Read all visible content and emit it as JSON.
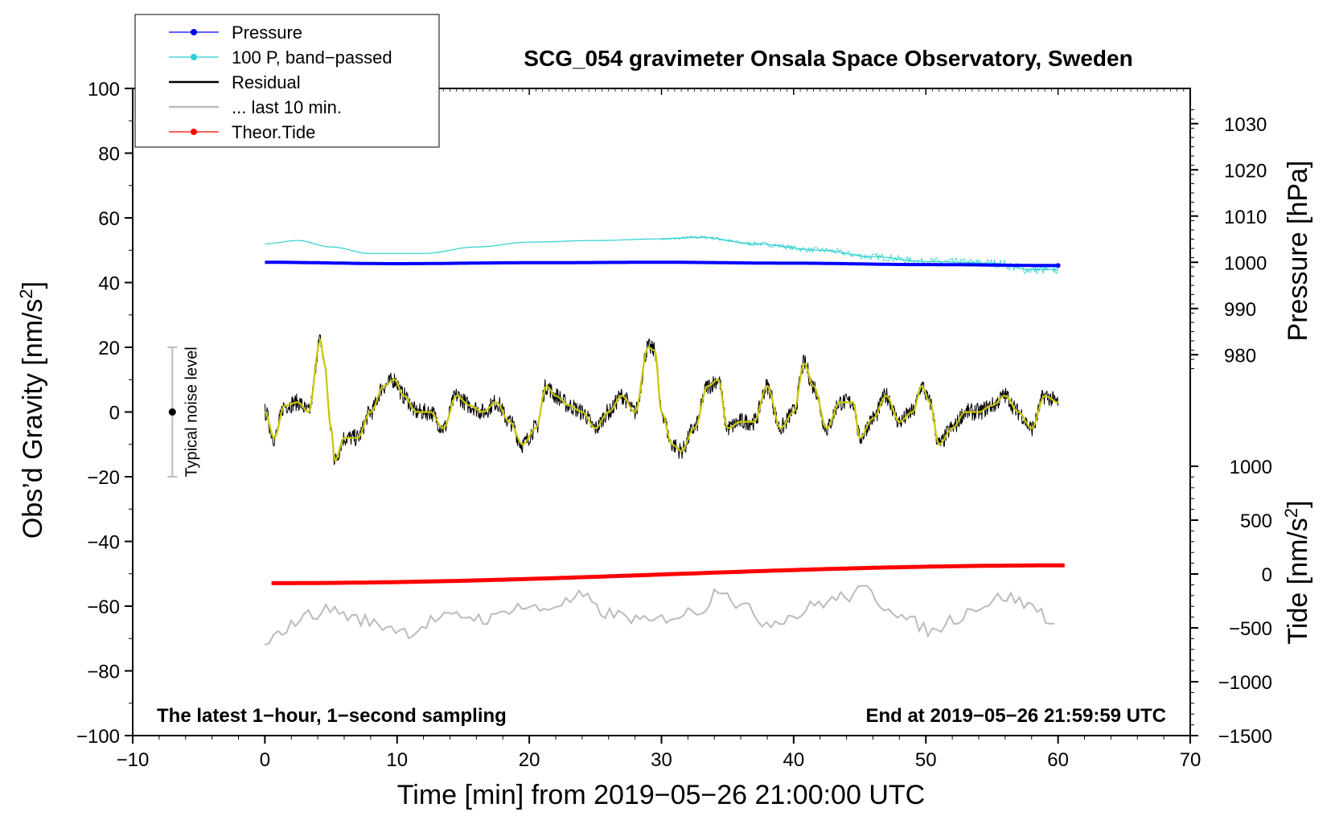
{
  "chart_data": {
    "type": "line",
    "title": "SCG_054 gravimeter Onsala Space Observatory, Sweden",
    "xlabel": "Time [min] from 2019−05−26 21:00:00 UTC",
    "xlim": [
      -10,
      70
    ],
    "x_ticks": [
      -10,
      0,
      10,
      20,
      30,
      40,
      50,
      60,
      70
    ],
    "x_tick_labels": [
      "−10",
      "0",
      "10",
      "20",
      "30",
      "40",
      "50",
      "60",
      "70"
    ],
    "left_axis": {
      "label_main": "Obs’d Gravity [nm/s",
      "label_sup": "2",
      "label_end": "]",
      "ylim": [
        -100,
        100
      ],
      "ticks": [
        -100,
        -80,
        -60,
        -40,
        -20,
        0,
        20,
        40,
        60,
        80,
        100
      ],
      "tick_labels": [
        "−100",
        "−80",
        "−60",
        "−40",
        "−20",
        "0",
        "20",
        "40",
        "60",
        "80",
        "100"
      ]
    },
    "pressure_axis": {
      "label": "Pressure [hPa]",
      "ylim": [
        975,
        1035
      ],
      "ticks": [
        980,
        990,
        1000,
        1010,
        1020,
        1030
      ],
      "tick_labels": [
        "980",
        "990",
        "1000",
        "1010",
        "1020",
        "1030"
      ]
    },
    "tide_axis": {
      "label_main": "Tide [nm/s",
      "label_sup": "2",
      "label_end": "]",
      "ylim": [
        -1500,
        1000
      ],
      "ticks": [
        -1500,
        -1000,
        -500,
        0,
        500,
        1000
      ],
      "tick_labels": [
        "−1500",
        "−1000",
        "−500",
        "0",
        "500",
        "1000"
      ]
    },
    "legend": [
      {
        "label": "Pressure",
        "color": "#0000ff",
        "marker": true
      },
      {
        "label": "100 P, band−passed",
        "color": "#2ccfcf",
        "marker": true
      },
      {
        "label": "Residual",
        "color": "#000000",
        "marker": false
      },
      {
        "label": "... last 10 min.",
        "color": "#bbbbbb",
        "marker": false
      },
      {
        "label": "Theor.Tide",
        "color": "#ff0000",
        "marker": true
      }
    ],
    "legend_position": "top-left",
    "series": [
      {
        "name": "Pressure",
        "axis": "pressure",
        "color": "#0000ff",
        "x": [
          0,
          10,
          20,
          30,
          40,
          50,
          60
        ],
        "y": [
          1000.0,
          999.7,
          999.9,
          1000.0,
          999.8,
          999.5,
          999.3
        ]
      },
      {
        "name": "100 P, band−passed",
        "axis": "left",
        "color": "#2ccfcf",
        "x": [
          0,
          2.5,
          5,
          8,
          12,
          16,
          20,
          25,
          30,
          33,
          37,
          42,
          46,
          50,
          55,
          58,
          60
        ],
        "y": [
          52,
          53,
          51,
          49,
          49,
          51,
          52.5,
          53,
          53.5,
          54,
          52,
          50,
          48,
          46.5,
          46,
          44,
          44
        ]
      },
      {
        "name": "Residual",
        "axis": "left",
        "color": "#000000",
        "x": [
          0,
          0.7,
          1.5,
          2.5,
          3.3,
          4.2,
          4.5,
          5.0,
          5.3,
          6.0,
          7.0,
          8.0,
          9.0,
          9.8,
          10.5,
          11.5,
          12.5,
          13.5,
          14.5,
          15.5,
          16.5,
          17.5,
          18.5,
          19.5,
          20.5,
          21.3,
          22.0,
          23.0,
          24.0,
          25.0,
          26.0,
          27.0,
          28.0,
          29.0,
          29.5,
          30.0,
          30.8,
          31.5,
          32.5,
          33.5,
          34.3,
          35.0,
          36.0,
          37.0,
          38.0,
          39.0,
          40.0,
          40.8,
          41.5,
          42.5,
          43.5,
          44.5,
          45.0,
          46.0,
          47.0,
          48.0,
          49.0,
          49.7,
          50.3,
          51.0,
          52.0,
          53.0,
          54.0,
          55.0,
          56.0,
          57.0,
          58.0,
          59.0,
          60.0
        ],
        "y": [
          0,
          -8,
          2,
          3,
          0,
          22,
          15,
          -5,
          -15,
          -8,
          -8,
          0,
          8,
          10,
          5,
          0,
          0,
          -5,
          5,
          2,
          0,
          3,
          -3,
          -10,
          -5,
          8,
          5,
          2,
          0,
          -5,
          0,
          5,
          0,
          20,
          19,
          0,
          -10,
          -12,
          -5,
          8,
          10,
          -5,
          -3,
          -3,
          8,
          -5,
          0,
          15,
          8,
          -5,
          3,
          3,
          -8,
          -2,
          5,
          -3,
          0,
          8,
          3,
          -10,
          -5,
          0,
          0,
          2,
          5,
          0,
          -5,
          5,
          3
        ]
      },
      {
        "name": "... last 10 min.",
        "axis": "left",
        "color": "#bbbbbb",
        "x": [
          0,
          1.5,
          3.0,
          5.0,
          7.0,
          9.0,
          11.0,
          13.0,
          15.0,
          17.0,
          19.0,
          21.0,
          22.5,
          24.0,
          25.5,
          27.0,
          29.0,
          31.0,
          33.0,
          34.5,
          36.0,
          38.0,
          40.0,
          42.0,
          44.0,
          45.5,
          47.0,
          49.0,
          50.5,
          52.0,
          54.0,
          56.0,
          58.0,
          60.0
        ],
        "y": [
          -73,
          -67,
          -63,
          -61,
          -64,
          -66,
          -68,
          -64,
          -63,
          -64,
          -60,
          -61,
          -59,
          -57,
          -62,
          -63,
          -65,
          -63,
          -61,
          -54,
          -60,
          -65,
          -63,
          -59,
          -57,
          -55,
          -60,
          -65,
          -68,
          -64,
          -60,
          -57,
          -60,
          -66
        ]
      },
      {
        "name": "Theor.Tide",
        "axis": "tide",
        "color": "#ff0000",
        "x": [
          0.5,
          60.5
        ],
        "y": [
          -85,
          80
        ]
      }
    ],
    "noise_indicator": {
      "label": "Typical noise level",
      "x": -7,
      "center": 0,
      "range": [
        -20,
        20
      ]
    },
    "footer_left": "The latest 1−hour, 1−second sampling",
    "footer_right": "End at 2019−05−26 21:59:59 UTC",
    "grid": false
  }
}
